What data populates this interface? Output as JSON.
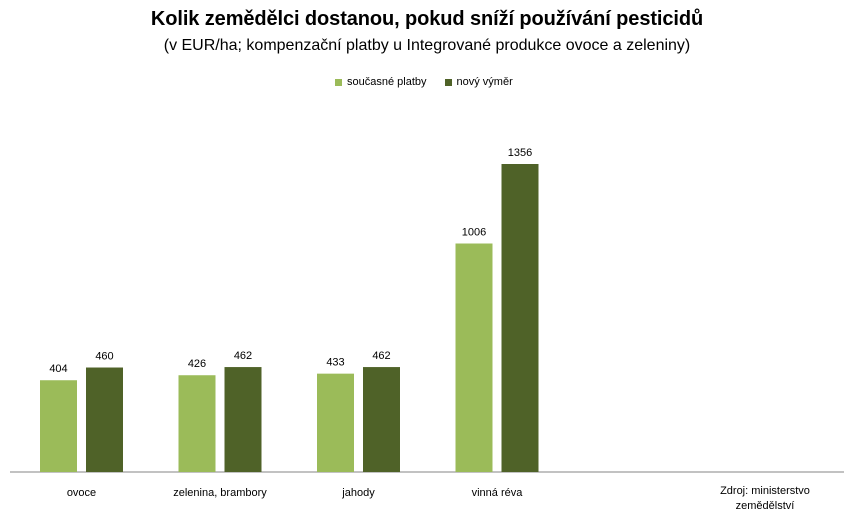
{
  "title": "Kolik zemědělci dostanou, pokud sníží používání pesticidů",
  "subtitle": "(v EUR/ha; kompenzační platby u Integrované produkce ovoce a zeleniny)",
  "source": "Zdroj: ministerstvo zemědělství",
  "chart_data": {
    "type": "bar",
    "categories": [
      "ovoce",
      "zelenina, brambory",
      "jahody",
      "vinná réva"
    ],
    "series": [
      {
        "name": "současné platby",
        "values": [
          404,
          426,
          433,
          1006
        ],
        "color": "#9BBB59"
      },
      {
        "name": "nový výměr",
        "values": [
          460,
          462,
          462,
          1356
        ],
        "color": "#4F6228"
      }
    ],
    "ylim": [
      0,
      1356
    ],
    "grid": false,
    "legend_position": "top-center",
    "data_labels": true
  }
}
